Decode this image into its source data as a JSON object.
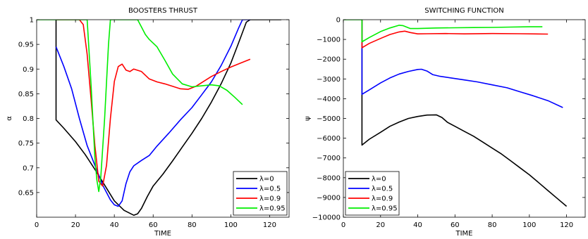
{
  "chart_data": [
    {
      "type": "line",
      "title": "BOOSTERS THRUST",
      "xlabel": "TIME",
      "ylabel": "α",
      "xlim": [
        0,
        130
      ],
      "ylim": [
        0.6,
        1.0
      ],
      "xticks": [
        0,
        20,
        40,
        60,
        80,
        100,
        120
      ],
      "yticks": [
        0.65,
        0.7,
        0.75,
        0.8,
        0.85,
        0.9,
        0.95,
        1
      ],
      "ytick_labels": [
        "0.65",
        "0.7",
        "0.75",
        "0.8",
        "0.85",
        "0.9",
        "0.95",
        "1"
      ],
      "legend_position": "bottom-right",
      "series": [
        {
          "name": "λ=0",
          "color": "#000000",
          "points": [
            [
              10,
              1.0
            ],
            [
              10,
              0.797
            ],
            [
              14,
              0.78
            ],
            [
              20,
              0.753
            ],
            [
              25,
              0.727
            ],
            [
              30,
              0.697
            ],
            [
              35,
              0.665
            ],
            [
              40,
              0.633
            ],
            [
              45,
              0.614
            ],
            [
              50,
              0.604
            ],
            [
              52,
              0.607
            ],
            [
              54,
              0.618
            ],
            [
              57,
              0.642
            ],
            [
              60,
              0.663
            ],
            [
              65,
              0.687
            ],
            [
              70,
              0.714
            ],
            [
              75,
              0.742
            ],
            [
              80,
              0.77
            ],
            [
              85,
              0.8
            ],
            [
              90,
              0.833
            ],
            [
              95,
              0.87
            ],
            [
              100,
              0.912
            ],
            [
              104,
              0.953
            ],
            [
              108,
              0.995
            ],
            [
              110,
              1.0
            ],
            [
              126,
              1.0
            ]
          ]
        },
        {
          "name": "λ=0.5",
          "color": "#0000ff",
          "points": [
            [
              10,
              0.945
            ],
            [
              14,
              0.905
            ],
            [
              18,
              0.86
            ],
            [
              22,
              0.8
            ],
            [
              26,
              0.745
            ],
            [
              30,
              0.705
            ],
            [
              34,
              0.665
            ],
            [
              38,
              0.635
            ],
            [
              40,
              0.625
            ],
            [
              42,
              0.622
            ],
            [
              44,
              0.633
            ],
            [
              46,
              0.668
            ],
            [
              48,
              0.692
            ],
            [
              50,
              0.704
            ],
            [
              54,
              0.715
            ],
            [
              58,
              0.725
            ],
            [
              62,
              0.744
            ],
            [
              68,
              0.77
            ],
            [
              74,
              0.797
            ],
            [
              80,
              0.822
            ],
            [
              85,
              0.848
            ],
            [
              90,
              0.874
            ],
            [
              95,
              0.907
            ],
            [
              100,
              0.946
            ],
            [
              104,
              0.983
            ],
            [
              106,
              1.0
            ],
            [
              110,
              1.0
            ]
          ]
        },
        {
          "name": "λ=0.9",
          "color": "#ff0000",
          "points": [
            [
              10,
              1.0
            ],
            [
              22,
              1.0
            ],
            [
              24,
              0.99
            ],
            [
              26,
              0.93
            ],
            [
              28,
              0.84
            ],
            [
              30,
              0.745
            ],
            [
              32,
              0.673
            ],
            [
              34,
              0.663
            ],
            [
              36,
              0.705
            ],
            [
              38,
              0.8
            ],
            [
              40,
              0.875
            ],
            [
              42,
              0.905
            ],
            [
              44,
              0.91
            ],
            [
              46,
              0.898
            ],
            [
              48,
              0.895
            ],
            [
              50,
              0.9
            ],
            [
              54,
              0.895
            ],
            [
              58,
              0.88
            ],
            [
              62,
              0.874
            ],
            [
              66,
              0.87
            ],
            [
              70,
              0.865
            ],
            [
              74,
              0.86
            ],
            [
              78,
              0.859
            ],
            [
              82,
              0.865
            ],
            [
              86,
              0.875
            ],
            [
              90,
              0.885
            ],
            [
              95,
              0.895
            ],
            [
              100,
              0.904
            ],
            [
              105,
              0.912
            ],
            [
              110,
              0.92
            ]
          ]
        },
        {
          "name": "λ=0.95",
          "color": "#00ee00",
          "points": [
            [
              0,
              1.0
            ],
            [
              26,
              1.0
            ],
            [
              28,
              0.87
            ],
            [
              30,
              0.72
            ],
            [
              31,
              0.675
            ],
            [
              32,
              0.652
            ],
            [
              33,
              0.68
            ],
            [
              35,
              0.8
            ],
            [
              37,
              0.95
            ],
            [
              38,
              1.0
            ],
            [
              52,
              1.0
            ],
            [
              54,
              0.985
            ],
            [
              56,
              0.97
            ],
            [
              58,
              0.96
            ],
            [
              62,
              0.945
            ],
            [
              66,
              0.918
            ],
            [
              70,
              0.89
            ],
            [
              75,
              0.87
            ],
            [
              80,
              0.864
            ],
            [
              85,
              0.866
            ],
            [
              90,
              0.868
            ],
            [
              94,
              0.866
            ],
            [
              98,
              0.857
            ],
            [
              102,
              0.843
            ],
            [
              106,
              0.828
            ]
          ]
        }
      ]
    },
    {
      "type": "line",
      "title": "SWITCHING FUNCTION",
      "xlabel": "TIME",
      "ylabel": "ψ",
      "xlim": [
        0,
        130
      ],
      "ylim": [
        -10000,
        0
      ],
      "xticks": [
        0,
        20,
        40,
        60,
        80,
        100,
        120
      ],
      "yticks": [
        -10000,
        -9000,
        -8000,
        -7000,
        -6000,
        -5000,
        -4000,
        -3000,
        -2000,
        -1000,
        0
      ],
      "ytick_labels": [
        "−10000",
        "−9000",
        "−8000",
        "−7000",
        "−6000",
        "−5000",
        "−4000",
        "−3000",
        "−2000",
        "−1000",
        "0"
      ],
      "legend_position": "bottom-left",
      "series": [
        {
          "name": "λ=0",
          "color": "#000000",
          "points": [
            [
              10,
              0
            ],
            [
              10,
              -6350
            ],
            [
              14,
              -6050
            ],
            [
              20,
              -5700
            ],
            [
              25,
              -5400
            ],
            [
              30,
              -5180
            ],
            [
              35,
              -5000
            ],
            [
              40,
              -4900
            ],
            [
              45,
              -4830
            ],
            [
              50,
              -4820
            ],
            [
              53,
              -4950
            ],
            [
              56,
              -5200
            ],
            [
              60,
              -5400
            ],
            [
              65,
              -5650
            ],
            [
              70,
              -5900
            ],
            [
              75,
              -6200
            ],
            [
              80,
              -6500
            ],
            [
              85,
              -6800
            ],
            [
              90,
              -7150
            ],
            [
              95,
              -7500
            ],
            [
              100,
              -7850
            ],
            [
              105,
              -8250
            ],
            [
              110,
              -8650
            ],
            [
              115,
              -9050
            ],
            [
              120,
              -9450
            ]
          ]
        },
        {
          "name": "λ=0.5",
          "color": "#0000ff",
          "points": [
            [
              10,
              0
            ],
            [
              10,
              -3780
            ],
            [
              14,
              -3550
            ],
            [
              20,
              -3200
            ],
            [
              25,
              -2950
            ],
            [
              30,
              -2750
            ],
            [
              35,
              -2620
            ],
            [
              40,
              -2520
            ],
            [
              42,
              -2510
            ],
            [
              45,
              -2600
            ],
            [
              48,
              -2780
            ],
            [
              52,
              -2870
            ],
            [
              58,
              -2950
            ],
            [
              65,
              -3050
            ],
            [
              72,
              -3150
            ],
            [
              80,
              -3300
            ],
            [
              88,
              -3450
            ],
            [
              95,
              -3650
            ],
            [
              102,
              -3850
            ],
            [
              110,
              -4100
            ],
            [
              118,
              -4450
            ]
          ]
        },
        {
          "name": "λ=0.9",
          "color": "#ff0000",
          "points": [
            [
              10,
              0
            ],
            [
              10,
              -1420
            ],
            [
              14,
              -1200
            ],
            [
              20,
              -950
            ],
            [
              25,
              -750
            ],
            [
              30,
              -620
            ],
            [
              33,
              -580
            ],
            [
              36,
              -650
            ],
            [
              40,
              -720
            ],
            [
              45,
              -710
            ],
            [
              55,
              -700
            ],
            [
              65,
              -720
            ],
            [
              80,
              -700
            ],
            [
              95,
              -710
            ],
            [
              110,
              -730
            ]
          ]
        },
        {
          "name": "λ=0.95",
          "color": "#00ee00",
          "points": [
            [
              0,
              0
            ],
            [
              10,
              0
            ],
            [
              10,
              -1120
            ],
            [
              14,
              -900
            ],
            [
              20,
              -600
            ],
            [
              25,
              -420
            ],
            [
              30,
              -280
            ],
            [
              32,
              -300
            ],
            [
              36,
              -450
            ],
            [
              40,
              -450
            ],
            [
              50,
              -420
            ],
            [
              60,
              -410
            ],
            [
              70,
              -400
            ],
            [
              80,
              -390
            ],
            [
              90,
              -375
            ],
            [
              100,
              -360
            ],
            [
              107,
              -360
            ]
          ]
        }
      ]
    }
  ]
}
